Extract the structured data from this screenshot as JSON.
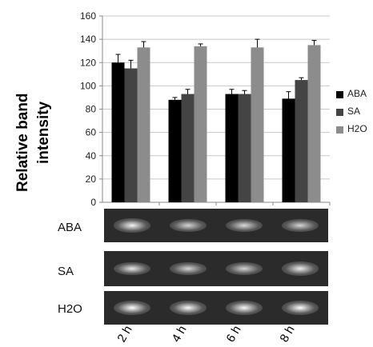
{
  "chart_data": {
    "type": "bar",
    "ylabel": "Relative band intensity",
    "ylabel_lines": [
      "Relative band",
      "intensity"
    ],
    "ylim": [
      0,
      160
    ],
    "yticks": [
      0,
      20,
      40,
      60,
      80,
      100,
      120,
      140,
      160
    ],
    "gridlines": true,
    "legend_position": "right",
    "categories": [
      "2 h",
      "4 h",
      "6 h",
      "8 h"
    ],
    "series": [
      {
        "name": "ABA",
        "color": "#000000",
        "values": [
          120,
          88,
          93,
          89
        ],
        "errors": [
          7,
          2,
          4,
          6
        ]
      },
      {
        "name": "SA",
        "color": "#444444",
        "values": [
          115,
          93,
          93,
          105
        ],
        "errors": [
          7,
          4,
          3,
          2
        ]
      },
      {
        "name": "H2O",
        "color": "#8c8c8c",
        "values": [
          133,
          134,
          133,
          135
        ],
        "errors": [
          5,
          2,
          7,
          4
        ]
      }
    ]
  },
  "gel": {
    "rows": [
      {
        "label": "ABA",
        "intensities": [
          0.9,
          0.6,
          0.65,
          0.6
        ]
      },
      {
        "label": "SA",
        "intensities": [
          0.8,
          0.6,
          0.6,
          0.85
        ]
      },
      {
        "label": "H2O",
        "intensities": [
          1.0,
          0.95,
          0.95,
          1.0
        ]
      }
    ]
  }
}
